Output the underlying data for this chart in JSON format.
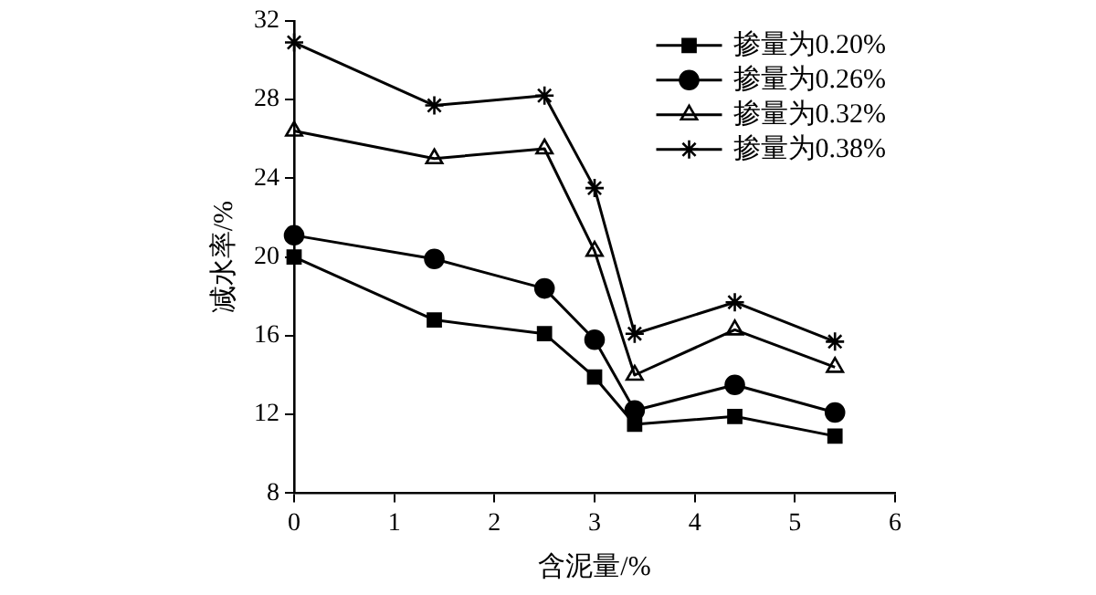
{
  "chart_data": {
    "type": "line",
    "xlabel": "含泥量/%",
    "ylabel": "减水率/%",
    "x": [
      0,
      1.4,
      2.5,
      3.0,
      3.4,
      4.4,
      5.4
    ],
    "series": [
      {
        "name": "掺量为0.20%",
        "color": "#000000",
        "marker": "square",
        "values": [
          20,
          16.8,
          16.1,
          13.9,
          11.5,
          11.9,
          10.9
        ]
      },
      {
        "name": "掺量为0.26%",
        "color": "#000000",
        "marker": "circle",
        "values": [
          21.1,
          19.9,
          18.4,
          15.8,
          12.2,
          13.5,
          12.1
        ]
      },
      {
        "name": "掺量为0.32%",
        "color": "#000000",
        "marker": "triangle",
        "values": [
          26.4,
          25.0,
          25.5,
          20.3,
          14.0,
          16.3,
          14.4
        ]
      },
      {
        "name": "掺量为0.38%",
        "color": "#000000",
        "marker": "cross",
        "values": [
          30.9,
          27.7,
          28.2,
          23.5,
          16.1,
          17.7,
          15.7
        ]
      }
    ],
    "xlim": [
      0,
      6
    ],
    "xticks": [
      0,
      1,
      2,
      3,
      4,
      5,
      6
    ],
    "ylim": [
      8,
      32
    ],
    "yticks": [
      8,
      12,
      16,
      20,
      24,
      28,
      32
    ],
    "grid": false,
    "legend": "top right",
    "line_style": "solid"
  }
}
